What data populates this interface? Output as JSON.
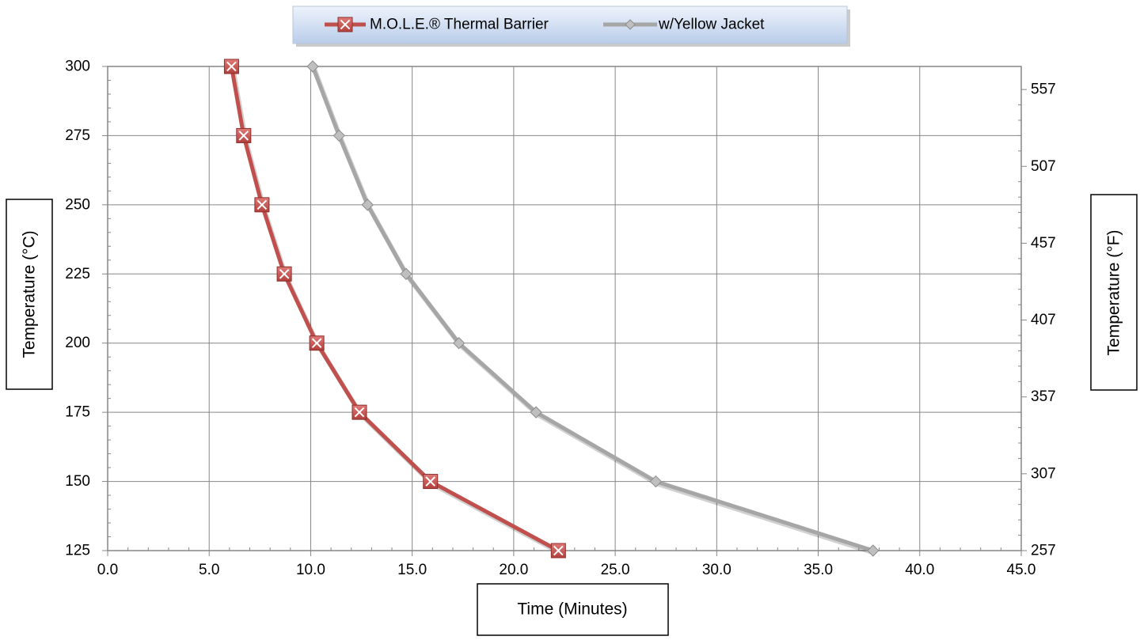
{
  "chart_data": {
    "type": "line",
    "title": "",
    "xlabel": "Time (Minutes)",
    "ylabel": "Temperature (°C)",
    "y2label": "Temperature (°F)",
    "xlim": [
      0,
      45
    ],
    "ylim": [
      125,
      300
    ],
    "y2lim": [
      257,
      572
    ],
    "x_ticks": [
      0,
      5,
      10,
      15,
      20,
      25,
      30,
      35,
      40,
      45
    ],
    "x_tick_labels": [
      "0.0",
      "5.0",
      "10.0",
      "15.0",
      "20.0",
      "25.0",
      "30.0",
      "35.0",
      "40.0",
      "45.0"
    ],
    "y_ticks": [
      125,
      150,
      175,
      200,
      225,
      250,
      275,
      300
    ],
    "y_tick_labels": [
      "125",
      "150",
      "175",
      "200",
      "225",
      "250",
      "275",
      "300"
    ],
    "y2_ticks": [
      257,
      307,
      357,
      407,
      457,
      507,
      557
    ],
    "y2_tick_labels": [
      "257",
      "307",
      "357",
      "407",
      "457",
      "507",
      "557"
    ],
    "grid": true,
    "legend_position": "top-center",
    "series": [
      {
        "name": "M.O.L.E.® Thermal Barrier",
        "color": "#c0504d",
        "marker": "x-square",
        "points": [
          [
            6.1,
            300
          ],
          [
            6.7,
            275
          ],
          [
            7.6,
            250
          ],
          [
            8.7,
            225
          ],
          [
            10.3,
            200
          ],
          [
            12.4,
            175
          ],
          [
            15.9,
            150
          ],
          [
            22.2,
            125
          ]
        ]
      },
      {
        "name": "w/Yellow Jacket",
        "color": "#a6a6a6",
        "marker": "diamond",
        "points": [
          [
            10.1,
            300
          ],
          [
            11.4,
            275
          ],
          [
            12.8,
            250
          ],
          [
            14.7,
            225
          ],
          [
            17.3,
            200
          ],
          [
            21.1,
            175
          ],
          [
            27.0,
            150
          ],
          [
            37.7,
            125
          ]
        ]
      }
    ]
  }
}
